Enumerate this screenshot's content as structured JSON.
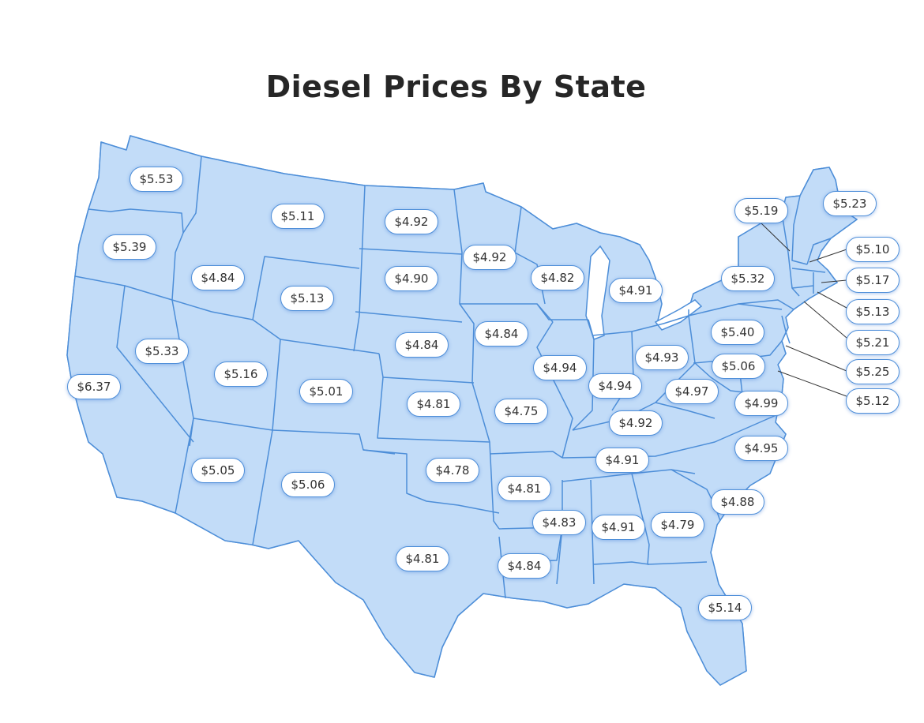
{
  "title": "Diesel Prices By State",
  "colors": {
    "state_fill": "#c2dcf8",
    "state_border": "#4d8ed8",
    "badge_border": "#4f8fd9",
    "leader_line": "#333333"
  },
  "states": [
    {
      "id": "WA",
      "price": "$5.53"
    },
    {
      "id": "OR",
      "price": "$5.39"
    },
    {
      "id": "CA",
      "price": "$6.37"
    },
    {
      "id": "NV",
      "price": "$5.33"
    },
    {
      "id": "ID",
      "price": "$4.84"
    },
    {
      "id": "MT",
      "price": "$5.11"
    },
    {
      "id": "WY",
      "price": "$5.13"
    },
    {
      "id": "UT",
      "price": "$5.16"
    },
    {
      "id": "CO",
      "price": "$5.01"
    },
    {
      "id": "AZ",
      "price": "$5.05"
    },
    {
      "id": "NM",
      "price": "$5.06"
    },
    {
      "id": "ND",
      "price": "$4.92"
    },
    {
      "id": "SD",
      "price": "$4.90"
    },
    {
      "id": "NE",
      "price": "$4.84"
    },
    {
      "id": "KS",
      "price": "$4.81"
    },
    {
      "id": "OK",
      "price": "$4.78"
    },
    {
      "id": "TX",
      "price": "$4.81"
    },
    {
      "id": "MN",
      "price": "$4.92"
    },
    {
      "id": "IA",
      "price": "$4.84"
    },
    {
      "id": "MO",
      "price": "$4.75"
    },
    {
      "id": "AR",
      "price": "$4.81"
    },
    {
      "id": "LA",
      "price": "$4.84"
    },
    {
      "id": "WI",
      "price": "$4.82"
    },
    {
      "id": "IL",
      "price": "$4.94"
    },
    {
      "id": "MS",
      "price": "$4.83"
    },
    {
      "id": "MI",
      "price": "$4.91"
    },
    {
      "id": "IN",
      "price": "$4.94"
    },
    {
      "id": "OH",
      "price": "$4.93"
    },
    {
      "id": "KY",
      "price": "$4.92"
    },
    {
      "id": "TN",
      "price": "$4.91"
    },
    {
      "id": "AL",
      "price": "$4.91"
    },
    {
      "id": "GA",
      "price": "$4.79"
    },
    {
      "id": "FL",
      "price": "$5.14"
    },
    {
      "id": "SC",
      "price": "$4.88"
    },
    {
      "id": "NC",
      "price": "$4.95"
    },
    {
      "id": "VA",
      "price": "$4.99"
    },
    {
      "id": "WV",
      "price": "$4.97"
    },
    {
      "id": "MD",
      "price": "$5.06"
    },
    {
      "id": "PA",
      "price": "$5.40"
    },
    {
      "id": "NY",
      "price": "$5.32"
    },
    {
      "id": "VT",
      "price": "$5.19"
    },
    {
      "id": "ME",
      "price": "$5.23"
    },
    {
      "id": "NH",
      "price": "$5.10"
    },
    {
      "id": "MA",
      "price": "$5.17"
    },
    {
      "id": "RI",
      "price": "$5.13"
    },
    {
      "id": "CT",
      "price": "$5.21"
    },
    {
      "id": "NJ",
      "price": "$5.25"
    },
    {
      "id": "DE",
      "price": "$5.12"
    }
  ]
}
